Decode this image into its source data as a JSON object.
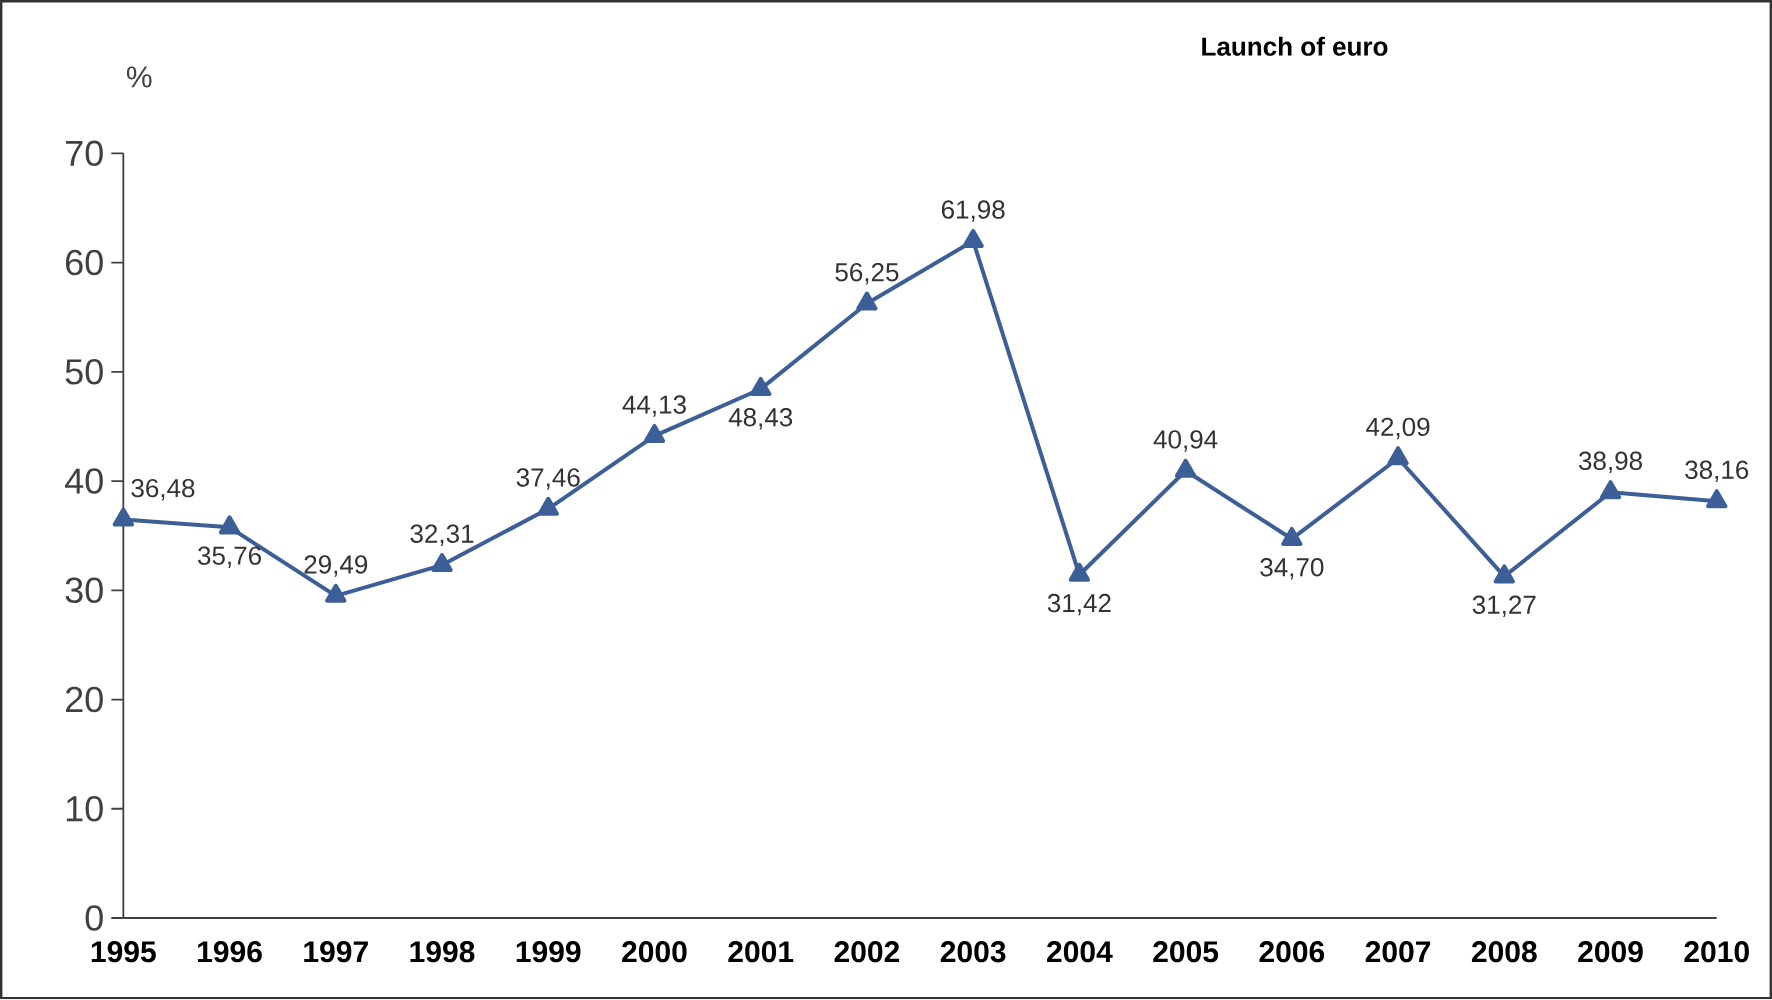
{
  "chart_data": {
    "type": "line",
    "ylabel": "%",
    "annotations": [
      "Launch of euro"
    ],
    "categories": [
      "1995",
      "1996",
      "1997",
      "1998",
      "1999",
      "2000",
      "2001",
      "2002",
      "2003",
      "2004",
      "2005",
      "2006",
      "2007",
      "2008",
      "2009",
      "2010"
    ],
    "series": [
      {
        "color": "#3d5f98",
        "values": [
          36.48,
          35.76,
          29.49,
          32.31,
          37.46,
          44.13,
          48.43,
          56.25,
          61.98,
          31.42,
          40.94,
          34.7,
          42.09,
          31.27,
          38.98,
          38.16
        ],
        "value_labels": [
          "36,48",
          "35,76",
          "29,49",
          "32,31",
          "37,46",
          "44,13",
          "48,43",
          "56,25",
          "61,98",
          "31,42",
          "40,94",
          "34,70",
          "42,09",
          "31,27",
          "38,98",
          "38,16"
        ]
      }
    ],
    "ylim": [
      0,
      70
    ],
    "yticks": [
      0,
      10,
      20,
      30,
      40,
      50,
      60,
      70
    ],
    "marker": "triangle",
    "line_style": "solid",
    "grid": false
  }
}
